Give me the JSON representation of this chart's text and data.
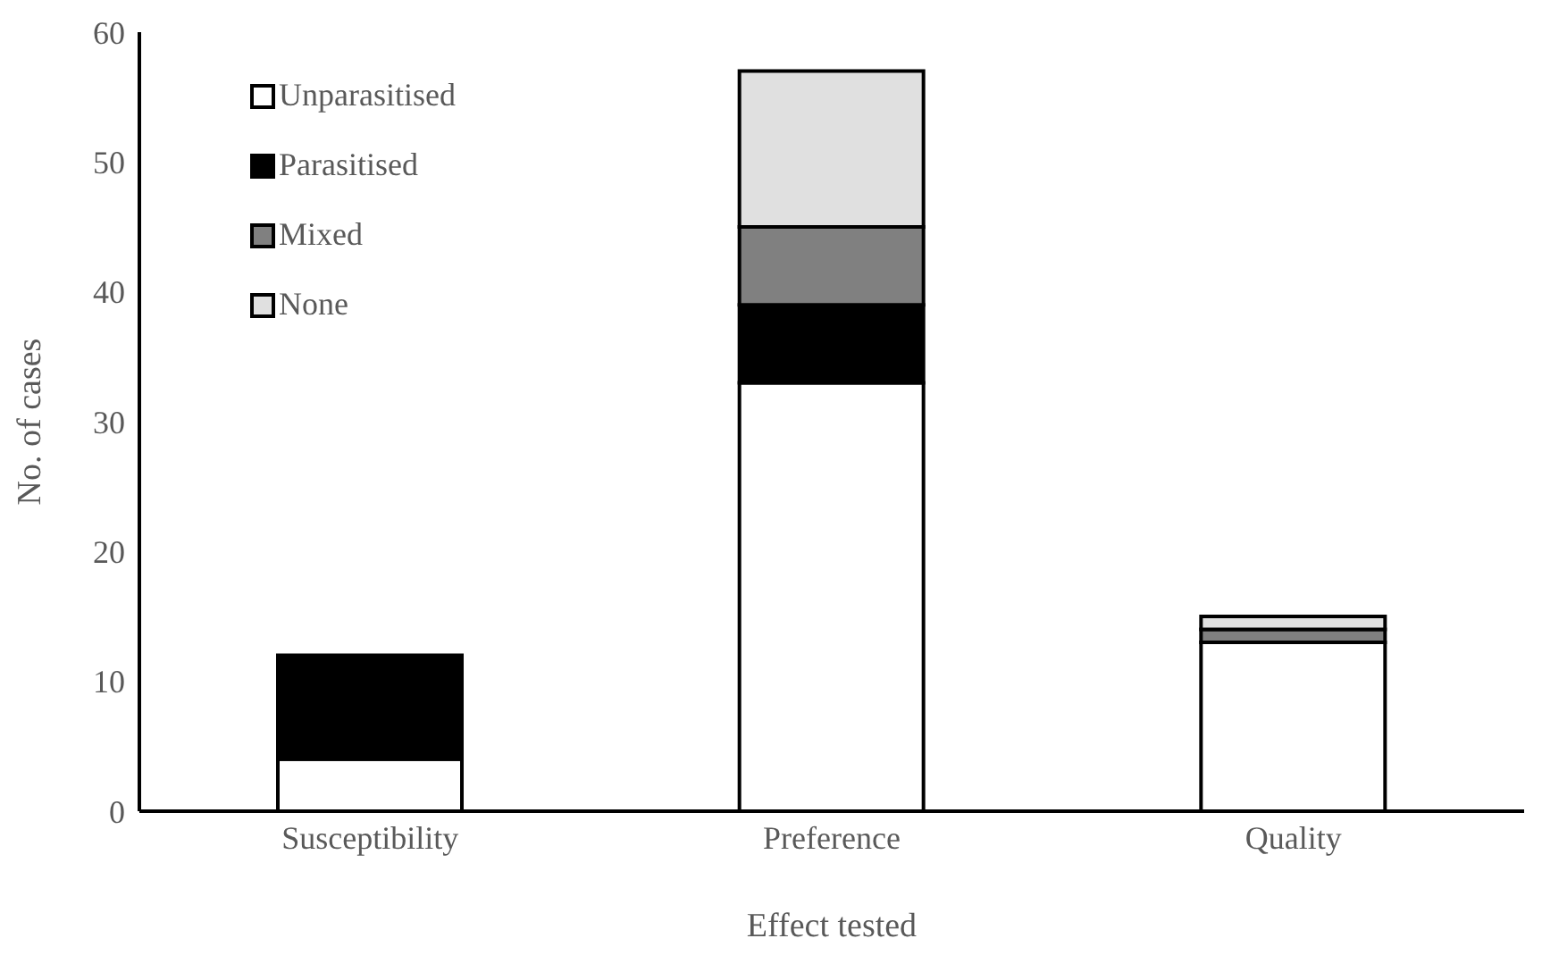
{
  "chart_data": {
    "type": "bar",
    "stacked": true,
    "xlabel": "Effect tested",
    "ylabel": "No. of cases",
    "categories": [
      "Susceptibility",
      "Preference",
      "Quality"
    ],
    "series": [
      {
        "name": "Unparasitised",
        "color": "#ffffff",
        "values": [
          4,
          33,
          13
        ]
      },
      {
        "name": "Parasitised",
        "color": "#000000",
        "values": [
          8,
          6,
          0
        ]
      },
      {
        "name": "Mixed",
        "color": "#808080",
        "values": [
          0,
          6,
          1
        ]
      },
      {
        "name": "None",
        "color": "#e0e0e0",
        "values": [
          0,
          12,
          1
        ]
      }
    ],
    "ylim": [
      0,
      60
    ],
    "yticks": [
      0,
      10,
      20,
      30,
      40,
      50,
      60
    ],
    "legend": "top left"
  }
}
